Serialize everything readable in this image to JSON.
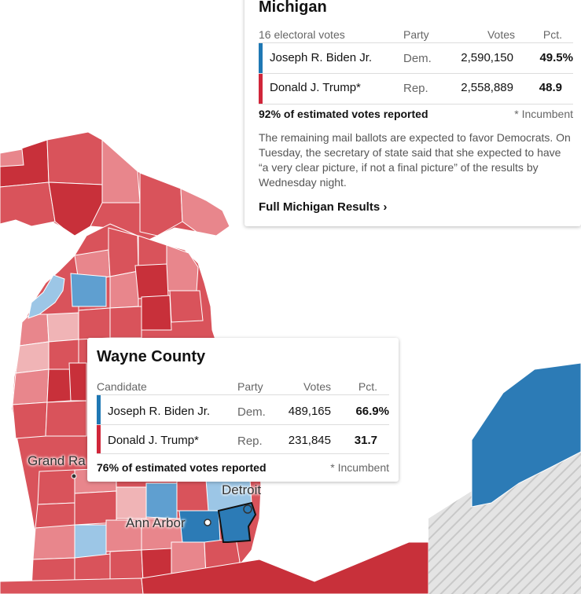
{
  "state_panel": {
    "title": "Michigan",
    "electoral_votes": "16 electoral votes",
    "headers": {
      "party": "Party",
      "votes": "Votes",
      "pct": "Pct."
    },
    "candidates": [
      {
        "name": "Joseph R. Biden Jr.",
        "party": "Dem.",
        "votes": "2,590,150",
        "pct": "49.5%",
        "color": "#1f78b4"
      },
      {
        "name": "Donald J. Trump*",
        "party": "Rep.",
        "votes": "2,558,889",
        "pct": "48.9",
        "color": "#d0263a"
      }
    ],
    "reported": "92% of estimated votes reported",
    "incumbent_note": "* Incumbent",
    "note": "The remaining mail ballots are expected to favor Democrats. On Tuesday, the secretary of state said that she expected to have “a very clear picture, if not a final picture” of the results by Wednesday night.",
    "link": "Full Michigan Results ›"
  },
  "county_panel": {
    "title": "Wayne County",
    "headers": {
      "candidate": "Candidate",
      "party": "Party",
      "votes": "Votes",
      "pct": "Pct."
    },
    "candidates": [
      {
        "name": "Joseph R. Biden Jr.",
        "party": "Dem.",
        "votes": "489,165",
        "pct": "66.9%",
        "color": "#1f78b4"
      },
      {
        "name": "Donald J. Trump*",
        "party": "Rep.",
        "votes": "231,845",
        "pct": "31.7",
        "color": "#d0263a"
      }
    ],
    "reported": "76% of estimated votes reported",
    "incumbent_note": "* Incumbent"
  },
  "map": {
    "cities": {
      "grand_rapids": "Grand Ra",
      "detroit": "Detroit",
      "ann_arbor": "Ann Arbor"
    },
    "colors": {
      "rep_strong": "#c8303a",
      "rep_mid": "#d9535b",
      "rep_light": "#e8868c",
      "rep_faint": "#f0b4b6",
      "dem_strong": "#2c7bb6",
      "dem_mid": "#5f9fd0",
      "dem_light": "#9cc6e6",
      "water": "#ffffff",
      "no_data_hatch": "#cccccc"
    }
  }
}
